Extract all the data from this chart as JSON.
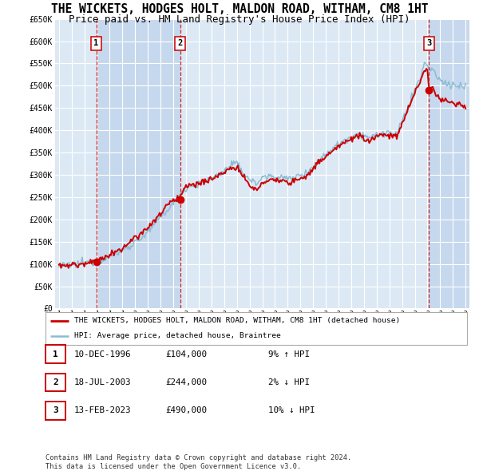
{
  "title": "THE WICKETS, HODGES HOLT, MALDON ROAD, WITHAM, CM8 1HT",
  "subtitle": "Price paid vs. HM Land Registry's House Price Index (HPI)",
  "title_fontsize": 10.5,
  "subtitle_fontsize": 9,
  "ylabel_ticks": [
    "£0",
    "£50K",
    "£100K",
    "£150K",
    "£200K",
    "£250K",
    "£300K",
    "£350K",
    "£400K",
    "£450K",
    "£500K",
    "£550K",
    "£600K",
    "£650K"
  ],
  "ytick_values": [
    0,
    50000,
    100000,
    150000,
    200000,
    250000,
    300000,
    350000,
    400000,
    450000,
    500000,
    550000,
    600000,
    650000
  ],
  "xlim_start": 1993.7,
  "xlim_end": 2026.3,
  "ylim_min": 0,
  "ylim_max": 650000,
  "background_color": "#FFFFFF",
  "plot_bg_color": "#dce9f5",
  "shade_light": "#dce9f5",
  "shade_dark": "#c5d8ed",
  "grid_color": "#FFFFFF",
  "red_line_color": "#cc0000",
  "blue_line_color": "#8bbcd4",
  "vline_color": "#cc0000",
  "marker_color": "#cc0000",
  "transaction_dates": [
    1996.94,
    2003.54,
    2023.12
  ],
  "transaction_values": [
    104000,
    244000,
    490000
  ],
  "transaction_labels": [
    "1",
    "2",
    "3"
  ],
  "legend_label_red": "THE WICKETS, HODGES HOLT, MALDON ROAD, WITHAM, CM8 1HT (detached house)",
  "legend_label_blue": "HPI: Average price, detached house, Braintree",
  "table_rows": [
    {
      "num": "1",
      "date": "10-DEC-1996",
      "price": "£104,000",
      "hpi": "9% ↑ HPI"
    },
    {
      "num": "2",
      "date": "18-JUL-2003",
      "price": "£244,000",
      "hpi": "2% ↓ HPI"
    },
    {
      "num": "3",
      "date": "13-FEB-2023",
      "price": "£490,000",
      "hpi": "10% ↓ HPI"
    }
  ],
  "footer": "Contains HM Land Registry data © Crown copyright and database right 2024.\nThis data is licensed under the Open Government Licence v3.0.",
  "xtick_years": [
    1994,
    1995,
    1996,
    1997,
    1998,
    1999,
    2000,
    2001,
    2002,
    2003,
    2004,
    2005,
    2006,
    2007,
    2008,
    2009,
    2010,
    2011,
    2012,
    2013,
    2014,
    2015,
    2016,
    2017,
    2018,
    2019,
    2020,
    2021,
    2022,
    2023,
    2024,
    2025,
    2026
  ]
}
